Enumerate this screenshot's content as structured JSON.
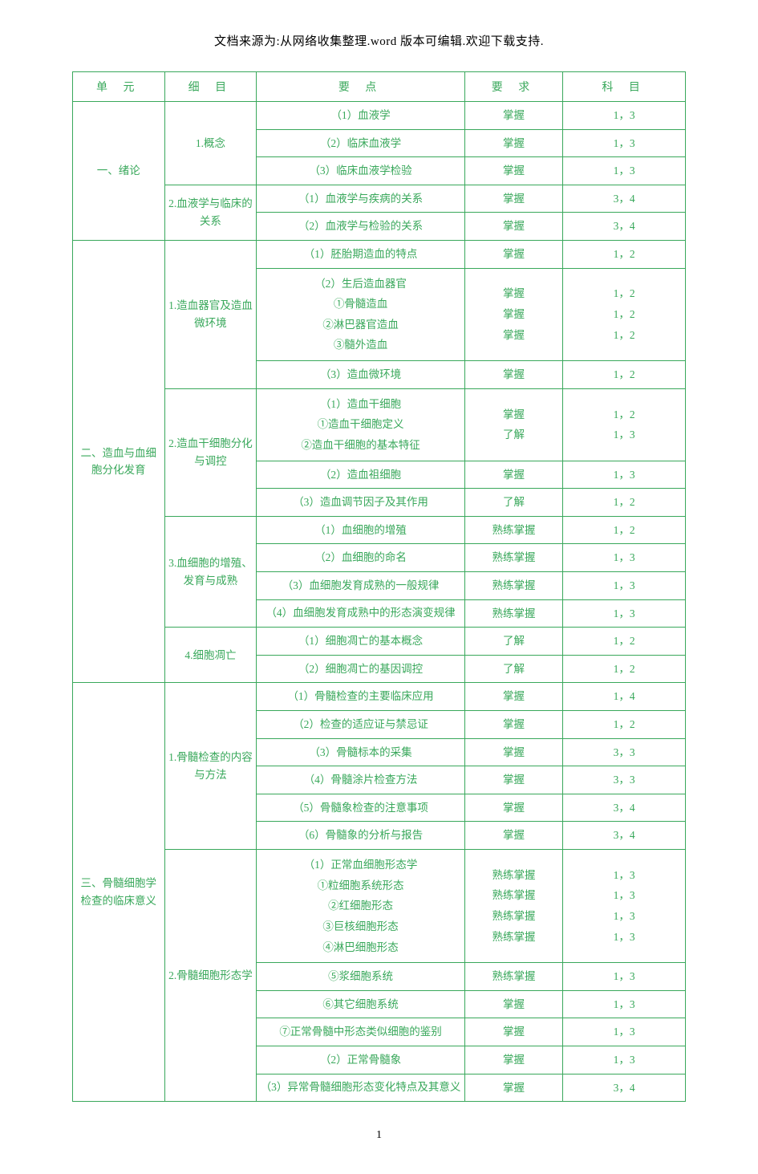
{
  "header": "文档来源为:从网络收集整理.word 版本可编辑.欢迎下载支持.",
  "page_number": "1",
  "columns": {
    "c1": "单 元",
    "c2": "细 目",
    "c3": "要  点",
    "c4": "要  求",
    "c5": "科  目"
  },
  "table_style": {
    "border_color": "#39a85b",
    "text_color": "#39a85b",
    "header_font_size": 14,
    "cell_font_size": 13.5,
    "background": "#ffffff"
  },
  "rows": [
    {
      "u": "一、绪论",
      "d": "1.概念",
      "p": "（1）血液学",
      "r": "掌握",
      "s": "1，3"
    },
    {
      "p": "（2）临床血液学",
      "r": "掌握",
      "s": "1，3"
    },
    {
      "p": "（3）临床血液学检验",
      "r": "掌握",
      "s": "1，3"
    },
    {
      "d": "2.血液学与临床的关系",
      "p": "（1）血液学与疾病的关系",
      "r": "掌握",
      "s": "3，4"
    },
    {
      "p": "（2）血液学与检验的关系",
      "r": "掌握",
      "s": "3，4"
    },
    {
      "u": "二、造血与血细胞分化发育",
      "d": "1.造血器官及造血微环境",
      "p": "（1）胚胎期造血的特点",
      "r": "掌握",
      "s": "1，2"
    },
    {
      "p": "（2）生后造血器官\n①骨髓造血\n②淋巴器官造血\n③髓外造血",
      "r": "掌握\n掌握\n掌握",
      "s": "1，2\n1，2\n1，2"
    },
    {
      "p": "（3）造血微环境",
      "r": "掌握",
      "s": "1，2"
    },
    {
      "d": "2.造血干细胞分化与调控",
      "p": "（1）造血干细胞\n①造血干细胞定义\n②造血干细胞的基本特征",
      "r": "掌握\n了解",
      "s": "1，2\n1，3"
    },
    {
      "p": "（2）造血祖细胞",
      "r": "掌握",
      "s": "1，3"
    },
    {
      "p": "（3）造血调节因子及其作用",
      "r": "了解",
      "s": "1，2"
    },
    {
      "d": "3.血细胞的增殖、发育与成熟",
      "p": "（1）血细胞的增殖",
      "r": "熟练掌握",
      "s": "1，2"
    },
    {
      "p": "（2）血细胞的命名",
      "r": "熟练掌握",
      "s": "1，3"
    },
    {
      "p": "（3）血细胞发育成熟的一般规律",
      "r": "熟练掌握",
      "s": "1，3"
    },
    {
      "p": "（4）血细胞发育成熟中的形态演变规律",
      "r": "熟练掌握",
      "s": "1，3"
    },
    {
      "d": "4.细胞凋亡",
      "p": "（1）细胞凋亡的基本概念",
      "r": "了解",
      "s": "1，2"
    },
    {
      "p": "（2）细胞凋亡的基因调控",
      "r": "了解",
      "s": "1，2"
    },
    {
      "u": "三、骨髓细胞学检查的临床意义",
      "d": "1.骨髓检查的内容与方法",
      "p": "（1）骨髓检查的主要临床应用",
      "r": "掌握",
      "s": "1，4"
    },
    {
      "p": "（2）检查的适应证与禁忌证",
      "r": "掌握",
      "s": "1，2"
    },
    {
      "p": "（3）骨髓标本的采集",
      "r": "掌握",
      "s": "3，3"
    },
    {
      "p": "（4）骨髓涂片检查方法",
      "r": "掌握",
      "s": "3，3"
    },
    {
      "p": "（5）骨髓象检查的注意事项",
      "r": "掌握",
      "s": "3，4"
    },
    {
      "p": "（6）骨髓象的分析与报告",
      "r": "掌握",
      "s": "3，4"
    },
    {
      "d": "2.骨髓细胞形态学",
      "p": "（1）正常血细胞形态学\n①粒细胞系统形态\n②红细胞形态\n③巨核细胞形态\n④淋巴细胞形态",
      "r": "熟练掌握\n熟练掌握\n熟练掌握\n熟练掌握",
      "s": "1，3\n1，3\n1，3\n1，3"
    },
    {
      "p": "⑤浆细胞系统",
      "r": "熟练掌握",
      "s": "1，3"
    },
    {
      "p": "⑥其它细胞系统",
      "r": "掌握",
      "s": "1，3"
    },
    {
      "p": "⑦正常骨髓中形态类似细胞的鉴别",
      "r": "掌握",
      "s": "1，3"
    },
    {
      "p": "（2）正常骨髓象",
      "r": "掌握",
      "s": "1，3"
    },
    {
      "p": "（3）异常骨髓细胞形态变化特点及其意义",
      "r": "掌握",
      "s": "3，4"
    }
  ]
}
